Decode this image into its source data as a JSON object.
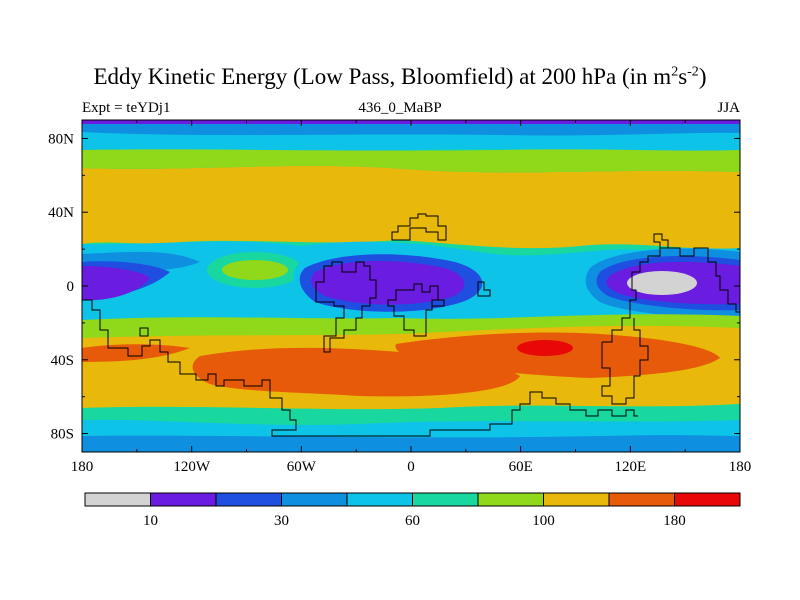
{
  "figure": {
    "title_main": "Eddy Kinetic Energy (Low Pass, Bloomfield) at 200 hPa (in m",
    "title_sup1": "2",
    "title_mid": "s",
    "title_sup2": "-2",
    "title_end": ")",
    "left_subtitle": "Expt = teYDj1",
    "center_subtitle": "436_0_MaBP",
    "right_subtitle": "JJA"
  },
  "axes": {
    "x_ticks": [
      "180",
      "120W",
      "60W",
      "0",
      "60E",
      "120E",
      "180"
    ],
    "y_ticks": [
      "80N",
      "40N",
      "0",
      "40S",
      "80S"
    ],
    "y_values": [
      80,
      40,
      0,
      -40,
      -80
    ],
    "x_values": [
      -180,
      -120,
      -60,
      0,
      60,
      120,
      180
    ]
  },
  "colorbar": {
    "colors": [
      "#d3d3d3",
      "#6a1ce0",
      "#1e4fe0",
      "#0f8fe0",
      "#0ec3e8",
      "#18d8a0",
      "#8fd81a",
      "#e8b90a",
      "#e65a0a",
      "#e80808"
    ],
    "labels": [
      "10",
      "30",
      "60",
      "100",
      "180"
    ]
  },
  "chart_data": {
    "type": "heatmap",
    "title": "Eddy Kinetic Energy (Low Pass, Bloomfield) at 200 hPa (in m2s-2)",
    "units": "m2 s-2",
    "x_range": [
      -180,
      180
    ],
    "y_range": [
      -90,
      90
    ],
    "levels": [
      10,
      20,
      30,
      45,
      60,
      80,
      100,
      140,
      180
    ],
    "season": "JJA",
    "experiment": "teYDj1"
  }
}
